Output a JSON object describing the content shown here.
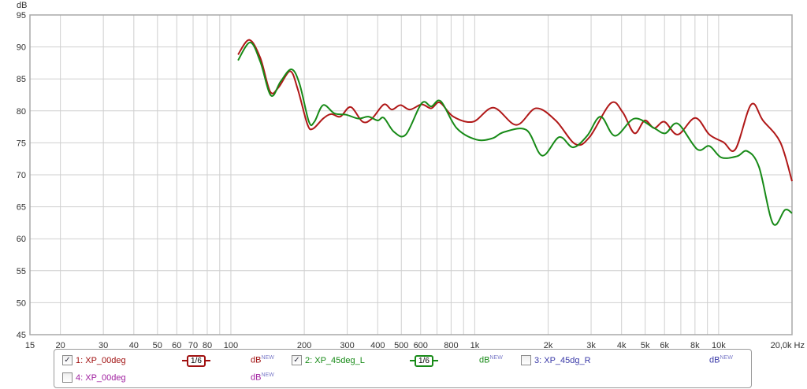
{
  "chart_data": {
    "type": "line",
    "xlabel": "Hz",
    "ylabel": "dB",
    "xscale": "log",
    "xlim": [
      15,
      20000
    ],
    "ylim": [
      45,
      95
    ],
    "grid": true,
    "yticks": [
      45,
      50,
      55,
      60,
      65,
      70,
      75,
      80,
      85,
      90,
      95
    ],
    "xticks": [
      {
        "v": 15,
        "l": "15"
      },
      {
        "v": 20,
        "l": "20"
      },
      {
        "v": 30,
        "l": "30"
      },
      {
        "v": 40,
        "l": "40"
      },
      {
        "v": 50,
        "l": "50"
      },
      {
        "v": 60,
        "l": "60"
      },
      {
        "v": 70,
        "l": "70"
      },
      {
        "v": 80,
        "l": "80"
      },
      {
        "v": 100,
        "l": "100"
      },
      {
        "v": 200,
        "l": "200"
      },
      {
        "v": 300,
        "l": "300"
      },
      {
        "v": 400,
        "l": "400"
      },
      {
        "v": 500,
        "l": "500"
      },
      {
        "v": 600,
        "l": "600"
      },
      {
        "v": 800,
        "l": "800"
      },
      {
        "v": 1000,
        "l": "1k"
      },
      {
        "v": 2000,
        "l": "2k"
      },
      {
        "v": 3000,
        "l": "3k"
      },
      {
        "v": 4000,
        "l": "4k"
      },
      {
        "v": 5000,
        "l": "5k"
      },
      {
        "v": 6000,
        "l": "6k"
      },
      {
        "v": 8000,
        "l": "8k"
      },
      {
        "v": 10000,
        "l": "10k"
      },
      {
        "v": 20000,
        "l": "20,0k Hz"
      }
    ],
    "series": [
      {
        "name": "1: XP_00deg",
        "color": "#b01818",
        "points": [
          [
            107,
            88.8
          ],
          [
            119,
            91.1
          ],
          [
            132,
            88.3
          ],
          [
            145,
            83.0
          ],
          [
            157,
            83.7
          ],
          [
            175,
            86.2
          ],
          [
            188,
            83.4
          ],
          [
            206,
            77.9
          ],
          [
            217,
            77.2
          ],
          [
            239,
            78.8
          ],
          [
            258,
            79.5
          ],
          [
            281,
            79.1
          ],
          [
            310,
            80.6
          ],
          [
            347,
            78.3
          ],
          [
            379,
            78.8
          ],
          [
            424,
            81.0
          ],
          [
            457,
            80.2
          ],
          [
            496,
            80.9
          ],
          [
            542,
            80.2
          ],
          [
            606,
            81.0
          ],
          [
            663,
            80.4
          ],
          [
            719,
            81.3
          ],
          [
            817,
            79.1
          ],
          [
            984,
            78.3
          ],
          [
            1194,
            80.5
          ],
          [
            1480,
            77.8
          ],
          [
            1782,
            80.4
          ],
          [
            2147,
            78.5
          ],
          [
            2586,
            74.8
          ],
          [
            2956,
            75.9
          ],
          [
            3614,
            81.2
          ],
          [
            4040,
            79.8
          ],
          [
            4518,
            76.5
          ],
          [
            4977,
            78.5
          ],
          [
            5443,
            77.3
          ],
          [
            5993,
            78.3
          ],
          [
            6802,
            76.3
          ],
          [
            8017,
            78.9
          ],
          [
            9163,
            76.3
          ],
          [
            10470,
            75.1
          ],
          [
            11720,
            74.0
          ],
          [
            13600,
            81.0
          ],
          [
            15200,
            78.5
          ],
          [
            17900,
            75.1
          ],
          [
            20000,
            69.0
          ]
        ]
      },
      {
        "name": "2: XP_45deg_L",
        "color": "#178a17",
        "points": [
          [
            107,
            87.9
          ],
          [
            120,
            90.7
          ],
          [
            132,
            87.7
          ],
          [
            146,
            82.4
          ],
          [
            160,
            84.6
          ],
          [
            177,
            86.5
          ],
          [
            191,
            84.3
          ],
          [
            209,
            78.3
          ],
          [
            220,
            78.3
          ],
          [
            239,
            80.9
          ],
          [
            266,
            79.6
          ],
          [
            297,
            79.4
          ],
          [
            333,
            78.8
          ],
          [
            366,
            79.1
          ],
          [
            400,
            78.5
          ],
          [
            424,
            78.9
          ],
          [
            467,
            76.7
          ],
          [
            522,
            76.3
          ],
          [
            606,
            81.2
          ],
          [
            663,
            80.7
          ],
          [
            726,
            81.5
          ],
          [
            843,
            77.3
          ],
          [
            1015,
            75.5
          ],
          [
            1180,
            75.7
          ],
          [
            1320,
            76.7
          ],
          [
            1630,
            77.0
          ],
          [
            1890,
            73.0
          ],
          [
            2220,
            75.9
          ],
          [
            2530,
            74.3
          ],
          [
            2890,
            76.1
          ],
          [
            3280,
            79.1
          ],
          [
            3760,
            76.1
          ],
          [
            4518,
            78.8
          ],
          [
            5443,
            77.3
          ],
          [
            6050,
            76.5
          ],
          [
            6802,
            78.0
          ],
          [
            8170,
            74.0
          ],
          [
            9163,
            74.5
          ],
          [
            10270,
            72.7
          ],
          [
            11900,
            72.9
          ],
          [
            13100,
            73.7
          ],
          [
            14650,
            71.2
          ],
          [
            16700,
            62.4
          ],
          [
            18700,
            64.5
          ],
          [
            20000,
            64.0
          ]
        ]
      }
    ]
  },
  "legend": {
    "items": [
      {
        "label": "1: XP_00deg",
        "checked": true,
        "color": "#a01010",
        "smoothing": "1/6",
        "unit": "dB",
        "badge": "NEW"
      },
      {
        "label": "2: XP_45deg_L",
        "checked": true,
        "color": "#178a17",
        "smoothing": "1/6",
        "unit": "dB",
        "badge": "NEW"
      },
      {
        "label": "3: XP_45dg_R",
        "checked": false,
        "color": "#3a3aa8",
        "unit": "dB",
        "badge": "NEW"
      },
      {
        "label": "4: XP_00deg",
        "checked": false,
        "color": "#a020a0",
        "unit": "dB",
        "badge": "NEW"
      }
    ]
  }
}
